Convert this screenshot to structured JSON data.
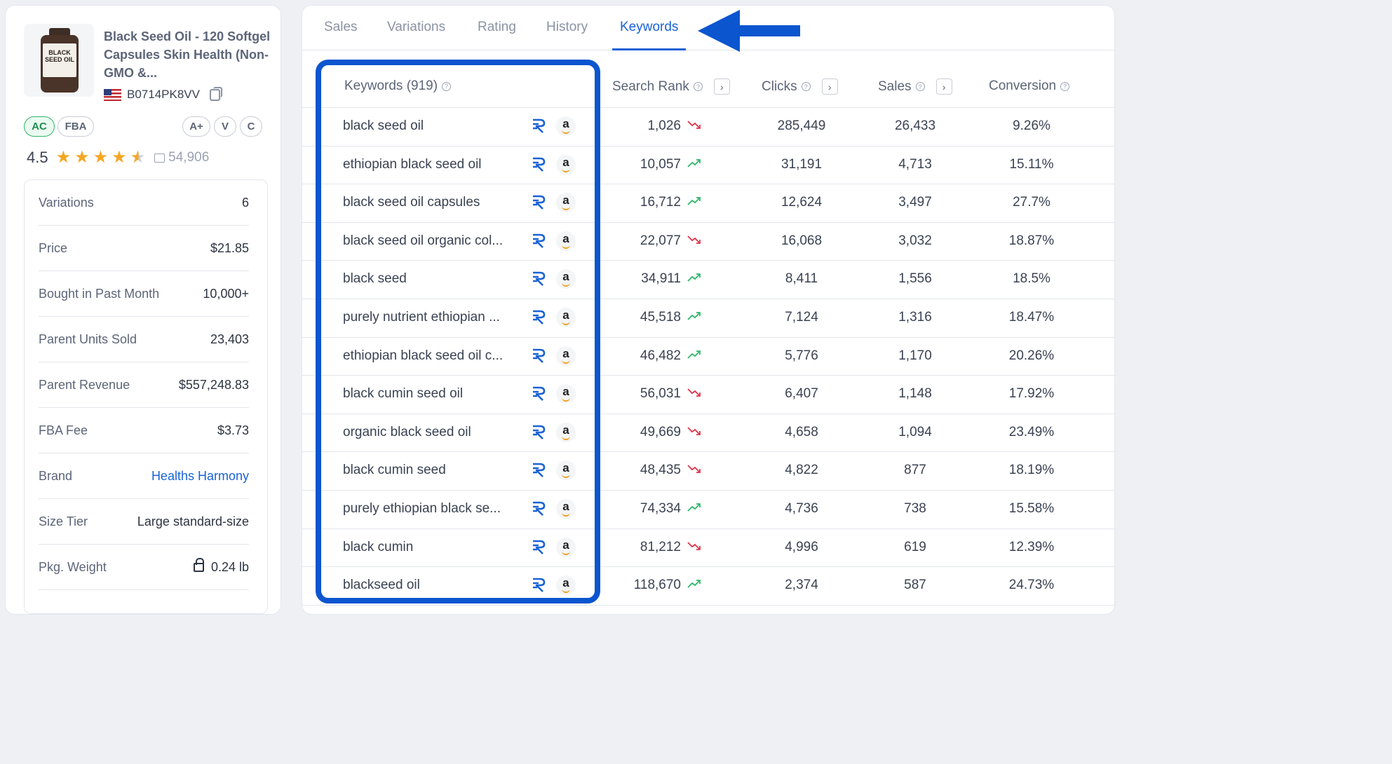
{
  "product": {
    "title": "Black Seed Oil - 120 Softgel Capsules Skin Health (Non-GMO &...",
    "asin": "B0714PK8VV",
    "image_label": "BLACK SEED OIL",
    "badges": [
      "AC",
      "FBA",
      "A+",
      "V",
      "C"
    ],
    "rating": "4.5",
    "review_count": "54,906"
  },
  "stats": [
    {
      "label": "Variations",
      "value": "6"
    },
    {
      "label": "Price",
      "value": "$21.85"
    },
    {
      "label": "Bought in Past Month",
      "value": "10,000+"
    },
    {
      "label": "Parent Units Sold",
      "value": "23,403"
    },
    {
      "label": "Parent Revenue",
      "value": "$557,248.83"
    },
    {
      "label": "FBA Fee",
      "value": "$3.73"
    },
    {
      "label": "Brand",
      "value": "Healths Harmony"
    },
    {
      "label": "Size Tier",
      "value": "Large standard-size"
    },
    {
      "label": "Pkg. Weight",
      "value": "0.24 lb"
    }
  ],
  "tabs": [
    "Sales",
    "Variations",
    "Rating",
    "History",
    "Keywords"
  ],
  "active_tab": "Keywords",
  "table": {
    "headers": {
      "keywords": "Keywords (919)",
      "search_rank": "Search Rank",
      "clicks": "Clicks",
      "sales": "Sales",
      "conversion": "Conversion"
    },
    "rows": [
      {
        "keyword": "black seed oil",
        "rank": "1,026",
        "trend": "down",
        "clicks": "285,449",
        "sales": "26,433",
        "conversion": "9.26%"
      },
      {
        "keyword": "ethiopian black seed oil",
        "rank": "10,057",
        "trend": "up",
        "clicks": "31,191",
        "sales": "4,713",
        "conversion": "15.11%"
      },
      {
        "keyword": "black seed oil capsules",
        "rank": "16,712",
        "trend": "up",
        "clicks": "12,624",
        "sales": "3,497",
        "conversion": "27.7%"
      },
      {
        "keyword": "black seed oil organic col...",
        "rank": "22,077",
        "trend": "down",
        "clicks": "16,068",
        "sales": "3,032",
        "conversion": "18.87%"
      },
      {
        "keyword": "black seed",
        "rank": "34,911",
        "trend": "up",
        "clicks": "8,411",
        "sales": "1,556",
        "conversion": "18.5%"
      },
      {
        "keyword": "purely nutrient ethiopian ...",
        "rank": "45,518",
        "trend": "up",
        "clicks": "7,124",
        "sales": "1,316",
        "conversion": "18.47%"
      },
      {
        "keyword": "ethiopian black seed oil c...",
        "rank": "46,482",
        "trend": "up",
        "clicks": "5,776",
        "sales": "1,170",
        "conversion": "20.26%"
      },
      {
        "keyword": "black cumin seed oil",
        "rank": "56,031",
        "trend": "down",
        "clicks": "6,407",
        "sales": "1,148",
        "conversion": "17.92%"
      },
      {
        "keyword": "organic black seed oil",
        "rank": "49,669",
        "trend": "down",
        "clicks": "4,658",
        "sales": "1,094",
        "conversion": "23.49%"
      },
      {
        "keyword": "black cumin seed",
        "rank": "48,435",
        "trend": "down",
        "clicks": "4,822",
        "sales": "877",
        "conversion": "18.19%"
      },
      {
        "keyword": "purely ethiopian black se...",
        "rank": "74,334",
        "trend": "up",
        "clicks": "4,736",
        "sales": "738",
        "conversion": "15.58%"
      },
      {
        "keyword": "black cumin",
        "rank": "81,212",
        "trend": "down",
        "clicks": "4,996",
        "sales": "619",
        "conversion": "12.39%"
      },
      {
        "keyword": "blackseed oil",
        "rank": "118,670",
        "trend": "up",
        "clicks": "2,374",
        "sales": "587",
        "conversion": "24.73%"
      }
    ]
  },
  "colors": {
    "accent": "#1a62d6",
    "highlight": "#0b55cf",
    "trend_up": "#2fb86a",
    "trend_down": "#e0344b",
    "star": "#f5a623"
  }
}
